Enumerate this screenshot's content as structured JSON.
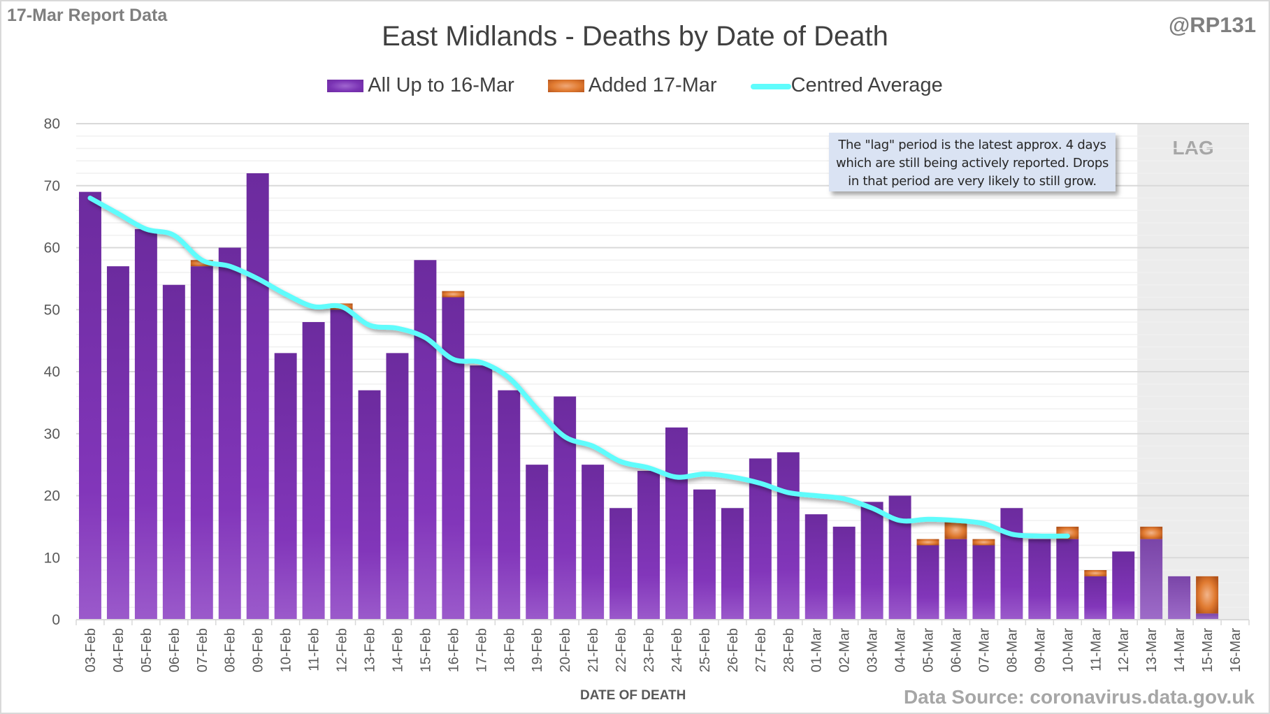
{
  "header": {
    "report_label": "17-Mar Report Data",
    "handle": "@RP131",
    "source": "Data Source: coronavirus.data.gov.uk"
  },
  "annotation": {
    "lines": [
      "The \"lag\" period is the latest approx. 4 days",
      "which are still being actively reported.  Drops",
      "in that period are very likely to still grow."
    ]
  },
  "chart_data": {
    "type": "bar",
    "stacked": true,
    "title": "East Midlands - Deaths by Date of Death",
    "xlabel": "DATE OF DEATH",
    "ylabel": "",
    "ylim": [
      0,
      80
    ],
    "yticks": [
      0,
      10,
      20,
      30,
      40,
      50,
      60,
      70,
      80
    ],
    "grid": true,
    "legend_position": "top-center",
    "lag_region": {
      "label": "LAG",
      "from": "13-Mar",
      "to": "16-Mar"
    },
    "categories": [
      "03-Feb",
      "04-Feb",
      "05-Feb",
      "06-Feb",
      "07-Feb",
      "08-Feb",
      "09-Feb",
      "10-Feb",
      "11-Feb",
      "12-Feb",
      "13-Feb",
      "14-Feb",
      "15-Feb",
      "16-Feb",
      "17-Feb",
      "18-Feb",
      "19-Feb",
      "20-Feb",
      "21-Feb",
      "22-Feb",
      "23-Feb",
      "24-Feb",
      "25-Feb",
      "26-Feb",
      "27-Feb",
      "28-Feb",
      "01-Mar",
      "02-Mar",
      "03-Mar",
      "04-Mar",
      "05-Mar",
      "06-Mar",
      "07-Mar",
      "08-Mar",
      "09-Mar",
      "10-Mar",
      "11-Mar",
      "12-Mar",
      "13-Mar",
      "14-Mar",
      "15-Mar",
      "16-Mar"
    ],
    "series": [
      {
        "name": "All Up to 16-Mar",
        "type": "bar",
        "color": "#7a33b4",
        "values": [
          69,
          57,
          63,
          54,
          57,
          60,
          72,
          43,
          48,
          50,
          37,
          43,
          58,
          52,
          41,
          37,
          25,
          36,
          25,
          18,
          24,
          31,
          21,
          18,
          26,
          27,
          17,
          15,
          19,
          20,
          12,
          13,
          12,
          18,
          13,
          13,
          7,
          11,
          13,
          7,
          1,
          0
        ]
      },
      {
        "name": "Added 17-Mar",
        "type": "bar",
        "color": "#e07a30",
        "values": [
          0,
          0,
          0,
          0,
          1,
          0,
          0,
          0,
          0,
          1,
          0,
          0,
          0,
          1,
          0,
          0,
          0,
          0,
          0,
          0,
          0,
          0,
          0,
          0,
          0,
          0,
          0,
          0,
          0,
          0,
          1,
          3,
          1,
          0,
          0,
          2,
          1,
          0,
          2,
          0,
          6,
          0
        ]
      },
      {
        "name": "Centred Average",
        "type": "line",
        "color": "#5ffcfc",
        "values": [
          68,
          65.5,
          63,
          62,
          58,
          57,
          55,
          52.5,
          50.5,
          50.5,
          47.5,
          47,
          45.5,
          42,
          41.5,
          39,
          34,
          29.5,
          28,
          25.5,
          24.5,
          23,
          23.5,
          23,
          22,
          20.5,
          20,
          19.5,
          18,
          16,
          16.2,
          16,
          15.5,
          13.8,
          13.5,
          13.5,
          null,
          null,
          null,
          null,
          null,
          null
        ]
      }
    ]
  }
}
